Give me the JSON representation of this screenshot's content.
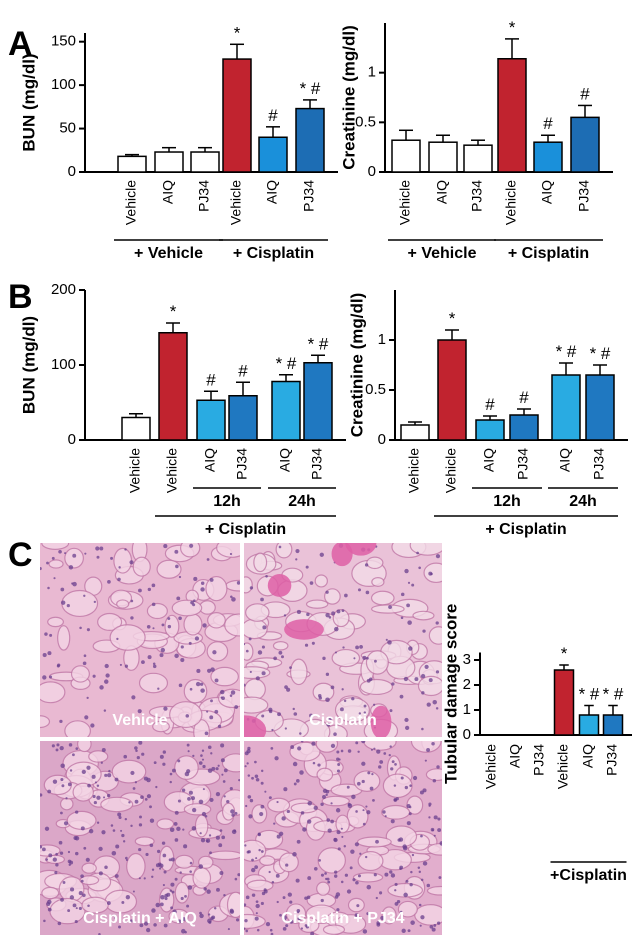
{
  "panel_labels": [
    "A",
    "B",
    "C"
  ],
  "images": [
    {
      "label": "Vehicle"
    },
    {
      "label": "Cisplatin"
    },
    {
      "label": "Cisplatin + AIQ"
    },
    {
      "label": "Cisplatin + PJ34"
    }
  ],
  "chart_data": [
    {
      "type": "bar",
      "y_label": "BUN (mg/dl)",
      "categories": [
        "Vehicle",
        "AIQ",
        "PJ34",
        "Vehicle",
        "AIQ",
        "PJ34"
      ],
      "values": [
        18,
        23,
        23,
        130,
        40,
        73
      ],
      "errors": [
        2,
        5,
        5,
        17,
        12,
        10
      ],
      "colors": [
        "#ffffff",
        "#ffffff",
        "#ffffff",
        "#c1232f",
        "#1a90da",
        "#1d6db4"
      ],
      "value_annotations": [
        null,
        null,
        null,
        "*",
        "#",
        "* #"
      ],
      "groups": [
        "+ Vehicle",
        "+ Cisplatin"
      ],
      "ylim": [
        0,
        160
      ],
      "yticks": [
        0,
        50,
        100,
        150
      ]
    },
    {
      "type": "bar",
      "y_label": "Creatinine (mg/dl)",
      "categories": [
        "Vehicle",
        "AIQ",
        "PJ34",
        "Vehicle",
        "AIQ",
        "PJ34"
      ],
      "values": [
        0.32,
        0.3,
        0.27,
        1.14,
        0.3,
        0.55
      ],
      "errors": [
        0.1,
        0.07,
        0.05,
        0.2,
        0.07,
        0.12
      ],
      "colors": [
        "#ffffff",
        "#ffffff",
        "#ffffff",
        "#c1232f",
        "#1a90da",
        "#1d6db4"
      ],
      "value_annotations": [
        null,
        null,
        null,
        "*",
        "#",
        "#"
      ],
      "groups": [
        "+ Vehicle",
        "+ Cisplatin"
      ],
      "ylim": [
        0,
        1.5
      ],
      "yticks": [
        0,
        0.5,
        1
      ]
    },
    {
      "type": "bar",
      "y_label": "BUN (mg/dl)",
      "categories": [
        "Vehicle",
        "Vehicle",
        "AIQ",
        "PJ34",
        "AIQ",
        "PJ34"
      ],
      "values": [
        30,
        143,
        53,
        59,
        78,
        103
      ],
      "errors": [
        5,
        13,
        12,
        18,
        9,
        10
      ],
      "colors": [
        "#ffffff",
        "#c1232f",
        "#29abe2",
        "#1f78c1",
        "#29abe2",
        "#1f78c1"
      ],
      "value_annotations": [
        null,
        "*",
        "#",
        "#",
        "* #",
        "* #"
      ],
      "groups": [
        "12h",
        "24h",
        "+ Cisplatin"
      ],
      "ylim": [
        0,
        200
      ],
      "yticks": [
        0,
        100,
        200
      ]
    },
    {
      "type": "bar",
      "y_label": "Creatinine (mg/dl)",
      "categories": [
        "Vehicle",
        "Vehicle",
        "AIQ",
        "PJ34",
        "AIQ",
        "PJ34"
      ],
      "values": [
        0.15,
        1.0,
        0.2,
        0.25,
        0.65,
        0.65
      ],
      "errors": [
        0.03,
        0.1,
        0.04,
        0.06,
        0.12,
        0.1
      ],
      "colors": [
        "#ffffff",
        "#c1232f",
        "#29abe2",
        "#1f78c1",
        "#29abe2",
        "#1f78c1"
      ],
      "value_annotations": [
        null,
        "*",
        "#",
        "#",
        "* #",
        "* #"
      ],
      "groups": [
        "12h",
        "24h",
        "+ Cisplatin"
      ],
      "ylim": [
        0,
        1.5
      ],
      "yticks": [
        0,
        0.5,
        1
      ]
    },
    {
      "type": "bar",
      "y_label": "Tubular damage score",
      "categories": [
        "Vehicle",
        "AIQ",
        "PJ34",
        "Vehicle",
        "AIQ",
        "PJ34"
      ],
      "values": [
        0,
        0,
        0,
        2.6,
        0.8,
        0.8
      ],
      "errors": [
        0,
        0,
        0,
        0.2,
        0.38,
        0.38
      ],
      "colors": [
        "#ffffff",
        "#ffffff",
        "#ffffff",
        "#c1232f",
        "#29abe2",
        "#1f78c1"
      ],
      "value_annotations": [
        null,
        null,
        null,
        "*",
        "* #",
        "* #"
      ],
      "groups": [
        "+Cisplatin"
      ],
      "ylim": [
        0,
        3.3
      ],
      "yticks": [
        0,
        1,
        2,
        3
      ]
    }
  ]
}
